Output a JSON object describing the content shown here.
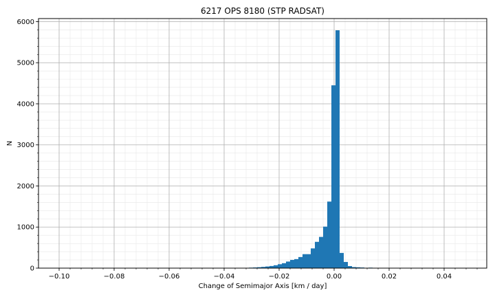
{
  "chart_data": {
    "type": "bar",
    "title": "6217 OPS 8180 (STP RADSAT)",
    "xlabel": "Change of Semimajor Axis [km / day]",
    "ylabel": "N",
    "xlim": [
      -0.1075,
      0.0555
    ],
    "ylim": [
      0,
      6075
    ],
    "xticks": [
      -0.1,
      -0.08,
      -0.06,
      -0.04,
      -0.02,
      0.0,
      0.02,
      0.04
    ],
    "xtick_labels": [
      "−0.10",
      "−0.08",
      "−0.06",
      "−0.04",
      "−0.02",
      "0.00",
      "0.02",
      "0.04"
    ],
    "yticks": [
      0,
      1000,
      2000,
      3000,
      4000,
      5000,
      6000
    ],
    "ytick_labels": [
      "0",
      "1000",
      "2000",
      "3000",
      "4000",
      "5000",
      "6000"
    ],
    "grid": true,
    "minor_grid": true,
    "bar_color": "#1f77b4",
    "bin_width": 0.0015,
    "bins": [
      {
        "x0": -0.034,
        "n": 5
      },
      {
        "x0": -0.0325,
        "n": 8
      },
      {
        "x0": -0.031,
        "n": 12
      },
      {
        "x0": -0.0295,
        "n": 16
      },
      {
        "x0": -0.028,
        "n": 22
      },
      {
        "x0": -0.0265,
        "n": 30
      },
      {
        "x0": -0.025,
        "n": 40
      },
      {
        "x0": -0.0235,
        "n": 52
      },
      {
        "x0": -0.022,
        "n": 70
      },
      {
        "x0": -0.0205,
        "n": 95
      },
      {
        "x0": -0.019,
        "n": 120
      },
      {
        "x0": -0.0175,
        "n": 160
      },
      {
        "x0": -0.016,
        "n": 200
      },
      {
        "x0": -0.0145,
        "n": 220
      },
      {
        "x0": -0.013,
        "n": 270
      },
      {
        "x0": -0.0115,
        "n": 340
      },
      {
        "x0": -0.01,
        "n": 340
      },
      {
        "x0": -0.0085,
        "n": 480
      },
      {
        "x0": -0.007,
        "n": 640
      },
      {
        "x0": -0.0055,
        "n": 760
      },
      {
        "x0": -0.004,
        "n": 1010
      },
      {
        "x0": -0.0025,
        "n": 1620
      },
      {
        "x0": -0.001,
        "n": 4450
      },
      {
        "x0": 0.0005,
        "n": 5790
      },
      {
        "x0": 0.002,
        "n": 370
      },
      {
        "x0": 0.0035,
        "n": 150
      },
      {
        "x0": 0.005,
        "n": 50
      },
      {
        "x0": 0.0065,
        "n": 25
      },
      {
        "x0": 0.008,
        "n": 20
      },
      {
        "x0": 0.0095,
        "n": 15
      },
      {
        "x0": 0.011,
        "n": 8
      },
      {
        "x0": 0.0125,
        "n": 12
      },
      {
        "x0": 0.014,
        "n": 5
      }
    ]
  }
}
